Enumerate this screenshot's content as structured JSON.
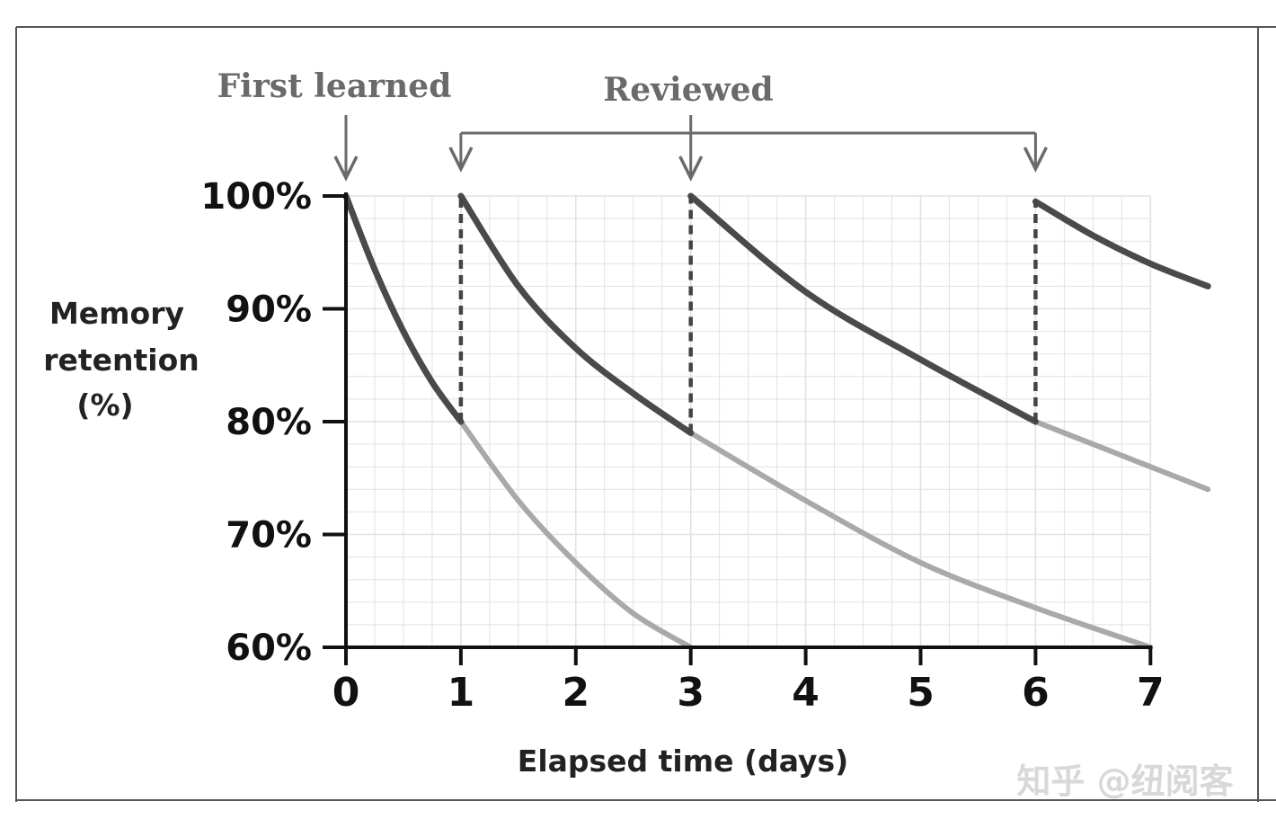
{
  "chart_data": {
    "type": "line",
    "title": "",
    "xlabel": "Elapsed time (days)",
    "ylabel": "Memory retention (%)",
    "ylabel_lines": [
      "Memory",
      "retention",
      "(%)"
    ],
    "xlim": [
      0,
      7.5
    ],
    "ylim": [
      60,
      100
    ],
    "x_ticks": [
      0,
      1,
      2,
      3,
      4,
      5,
      6,
      7
    ],
    "x_tick_labels": [
      "0",
      "1",
      "2",
      "3",
      "4",
      "5",
      "6",
      "7"
    ],
    "y_ticks": [
      100,
      90,
      80,
      70,
      60
    ],
    "y_tick_labels": [
      "100%",
      "90%",
      "80%",
      "70%",
      "60%"
    ],
    "grid": true,
    "annotations": {
      "first_learned": {
        "label": "First learned",
        "x": 0
      },
      "reviewed": {
        "label": "Reviewed",
        "x": [
          1,
          3,
          6
        ]
      }
    },
    "series": [
      {
        "style": "retained",
        "x": [
          0,
          0.25,
          0.5,
          0.75,
          1.0
        ],
        "y": [
          100,
          93.5,
          88.0,
          83.5,
          80.0
        ]
      },
      {
        "style": "forgotten",
        "x": [
          1.0,
          1.5,
          2.0,
          2.5,
          3.0
        ],
        "y": [
          80.0,
          73.0,
          67.5,
          63.0,
          60.0
        ]
      },
      {
        "style": "retained",
        "x": [
          1.0,
          1.5,
          2.0,
          2.5,
          3.0
        ],
        "y": [
          100,
          92.0,
          86.5,
          82.5,
          79.0
        ]
      },
      {
        "style": "forgotten",
        "x": [
          3.0,
          4.0,
          5.0,
          6.0,
          7.0
        ],
        "y": [
          79.0,
          73.0,
          67.5,
          63.5,
          60.0
        ]
      },
      {
        "style": "retained",
        "x": [
          3.0,
          4.0,
          5.0,
          6.0
        ],
        "y": [
          100,
          91.5,
          85.5,
          80.0
        ]
      },
      {
        "style": "forgotten",
        "x": [
          6.0,
          6.5,
          7.0,
          7.5
        ],
        "y": [
          80.0,
          78.0,
          76.0,
          74.0
        ]
      },
      {
        "style": "retained",
        "x": [
          6.0,
          6.5,
          7.0,
          7.5
        ],
        "y": [
          99.5,
          96.5,
          94.0,
          92.0
        ]
      }
    ],
    "review_drops": [
      {
        "x": 1,
        "from": 80.0,
        "to": 100
      },
      {
        "x": 3,
        "from": 79.0,
        "to": 100
      },
      {
        "x": 6,
        "from": 80.0,
        "to": 99.5
      }
    ]
  },
  "watermark": "知乎 @纽阅客",
  "colors": {
    "axis": "#111111",
    "retained": "#4a4a4a",
    "forgotten": "#a9a9a9",
    "annotation": "#6a6a6a",
    "grid": "#e2e2e2",
    "frame": "#555555",
    "watermark": "#dcdcdc"
  }
}
